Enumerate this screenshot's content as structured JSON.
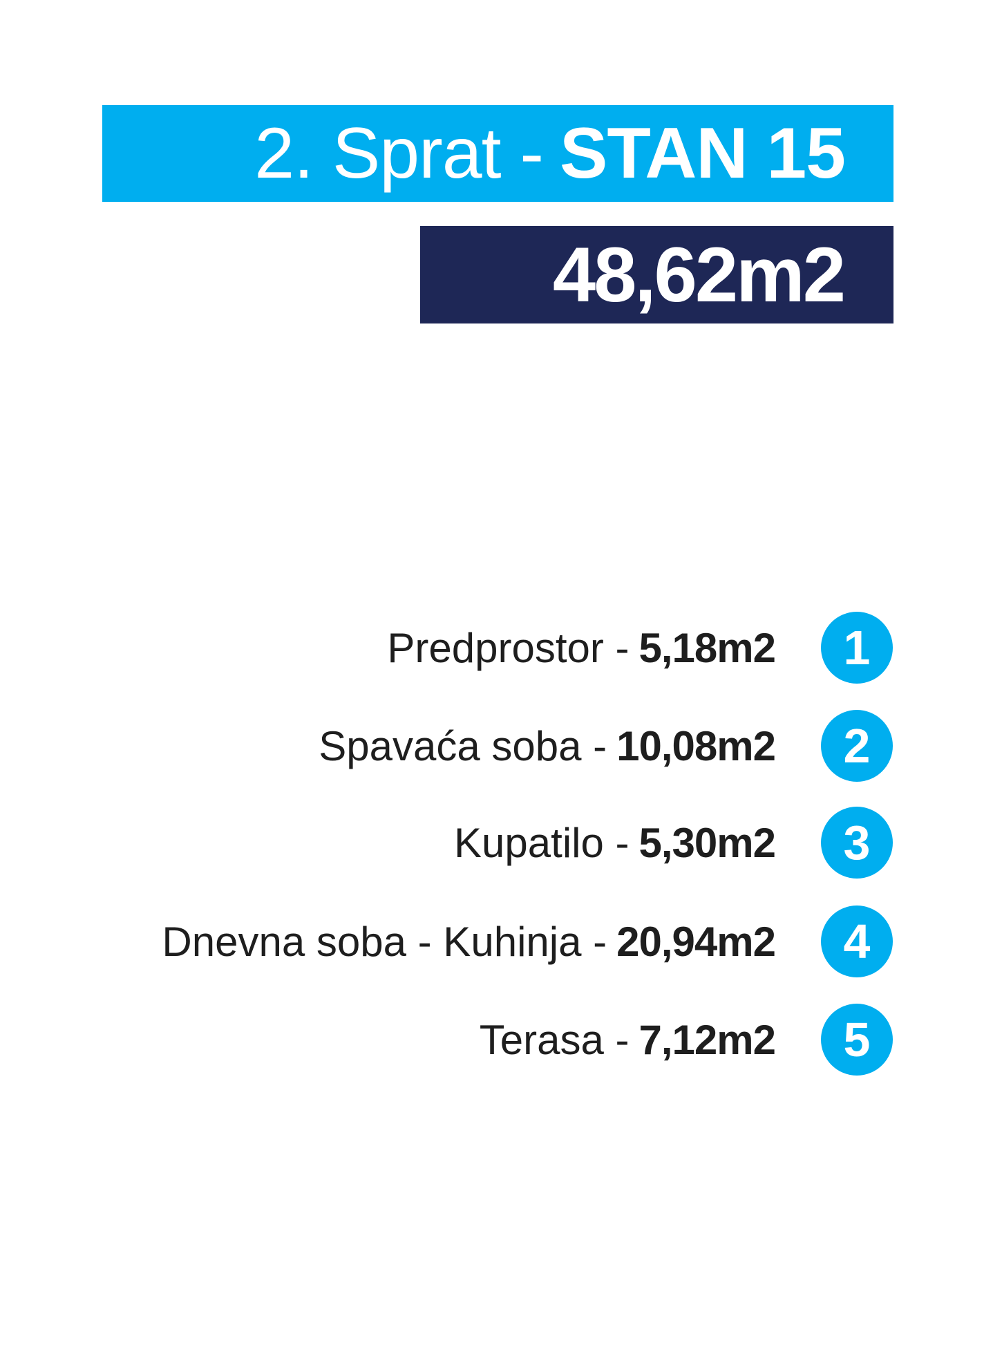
{
  "colors": {
    "accent": "#00aeef",
    "navy": "#1e2756",
    "text": "#1e1e1e"
  },
  "header": {
    "floor": "2. Sprat -",
    "unit": "STAN 15",
    "total_area": "48,62m2"
  },
  "rooms": [
    {
      "number": "1",
      "name": "Predprostor -",
      "area": "5,18m2"
    },
    {
      "number": "2",
      "name": "Spavaća soba -",
      "area": "10,08m2"
    },
    {
      "number": "3",
      "name": "Kupatilo -",
      "area": "5,30m2"
    },
    {
      "number": "4",
      "name": "Dnevna soba - Kuhinja -",
      "area": "20,94m2"
    },
    {
      "number": "5",
      "name": "Terasa -",
      "area": "7,12m2"
    }
  ]
}
